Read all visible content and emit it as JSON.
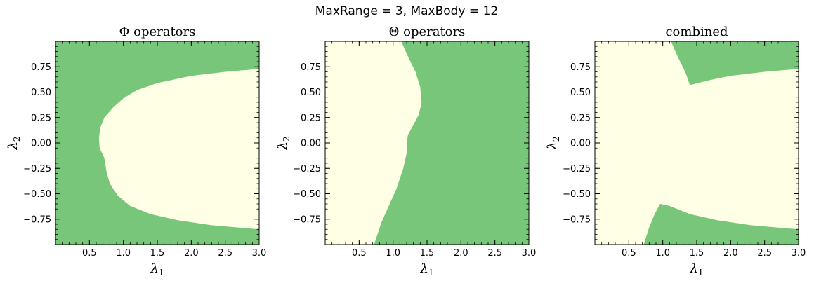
{
  "figure": {
    "suptitle": "MaxRange = 3,  MaxBody = 12"
  },
  "colors": {
    "region_green": "#78c679",
    "region_cream": "#ffffe5"
  },
  "chart_data": [
    {
      "type": "heatmap",
      "title": "Φ operators",
      "xlabel": "λ1",
      "ylabel": "λ2",
      "xlim": [
        0.0,
        3.0
      ],
      "ylim": [
        -1.0,
        1.0
      ],
      "xticks": [
        "0.5",
        "1.0",
        "1.5",
        "2.0",
        "2.5",
        "3.0"
      ],
      "yticks": [
        "0.75",
        "0.50",
        "0.25",
        "0.00",
        "−0.25",
        "−0.50",
        "−0.75"
      ],
      "grid": false,
      "background_color": "#78c679",
      "region_color": "#ffffe5",
      "region_boundary": [
        {
          "x": 3.0,
          "y": 0.73
        },
        {
          "x": 2.5,
          "y": 0.7
        },
        {
          "x": 2.0,
          "y": 0.66
        },
        {
          "x": 1.5,
          "y": 0.59
        },
        {
          "x": 1.2,
          "y": 0.52
        },
        {
          "x": 1.0,
          "y": 0.44
        },
        {
          "x": 0.85,
          "y": 0.35
        },
        {
          "x": 0.72,
          "y": 0.25
        },
        {
          "x": 0.66,
          "y": 0.15
        },
        {
          "x": 0.64,
          "y": 0.05
        },
        {
          "x": 0.65,
          "y": -0.05
        },
        {
          "x": 0.72,
          "y": -0.15
        },
        {
          "x": 0.75,
          "y": -0.28
        },
        {
          "x": 0.8,
          "y": -0.4
        },
        {
          "x": 0.92,
          "y": -0.52
        },
        {
          "x": 1.1,
          "y": -0.62
        },
        {
          "x": 1.4,
          "y": -0.7
        },
        {
          "x": 1.8,
          "y": -0.76
        },
        {
          "x": 2.3,
          "y": -0.81
        },
        {
          "x": 3.0,
          "y": -0.85
        }
      ]
    },
    {
      "type": "heatmap",
      "title": "Θ operators",
      "xlabel": "λ1",
      "ylabel": "λ2",
      "xlim": [
        0.0,
        3.0
      ],
      "ylim": [
        -1.0,
        1.0
      ],
      "xticks": [
        "0.5",
        "1.0",
        "1.5",
        "2.0",
        "2.5",
        "3.0"
      ],
      "yticks": [
        "0.75",
        "0.50",
        "0.25",
        "0.00",
        "−0.25",
        "−0.50",
        "−0.75"
      ],
      "grid": false,
      "background_color": "#78c679",
      "region_color": "#ffffe5",
      "region_boundary": [
        {
          "x": 0.0,
          "y": 1.0
        },
        {
          "x": 1.12,
          "y": 1.0
        },
        {
          "x": 1.22,
          "y": 0.85
        },
        {
          "x": 1.33,
          "y": 0.7
        },
        {
          "x": 1.4,
          "y": 0.55
        },
        {
          "x": 1.42,
          "y": 0.4
        },
        {
          "x": 1.38,
          "y": 0.28
        },
        {
          "x": 1.3,
          "y": 0.18
        },
        {
          "x": 1.22,
          "y": 0.08
        },
        {
          "x": 1.2,
          "y": 0.0
        },
        {
          "x": 1.2,
          "y": -0.1
        },
        {
          "x": 1.15,
          "y": -0.25
        },
        {
          "x": 1.05,
          "y": -0.45
        },
        {
          "x": 0.95,
          "y": -0.6
        },
        {
          "x": 0.83,
          "y": -0.78
        },
        {
          "x": 0.72,
          "y": -1.0
        },
        {
          "x": 0.0,
          "y": -1.0
        }
      ]
    },
    {
      "type": "heatmap",
      "title": "combined",
      "xlabel": "λ1",
      "ylabel": "λ2",
      "xlim": [
        0.0,
        3.0
      ],
      "ylim": [
        -1.0,
        1.0
      ],
      "xticks": [
        "0.5",
        "1.0",
        "1.5",
        "2.0",
        "2.5",
        "3.0"
      ],
      "yticks": [
        "0.75",
        "0.50",
        "0.25",
        "0.00",
        "−0.25",
        "−0.50",
        "−0.75"
      ],
      "grid": false,
      "background_color": "#ffffe5",
      "region_color": "#78c679",
      "green_regions": [
        [
          {
            "x": 1.12,
            "y": 1.0
          },
          {
            "x": 3.0,
            "y": 1.0
          },
          {
            "x": 3.0,
            "y": 0.73
          },
          {
            "x": 2.5,
            "y": 0.7
          },
          {
            "x": 2.0,
            "y": 0.66
          },
          {
            "x": 1.7,
            "y": 0.62
          },
          {
            "x": 1.4,
            "y": 0.57
          },
          {
            "x": 1.33,
            "y": 0.7
          },
          {
            "x": 1.22,
            "y": 0.85
          }
        ],
        [
          {
            "x": 0.72,
            "y": -1.0
          },
          {
            "x": 0.8,
            "y": -0.83
          },
          {
            "x": 0.88,
            "y": -0.7
          },
          {
            "x": 0.96,
            "y": -0.6
          },
          {
            "x": 1.1,
            "y": -0.62
          },
          {
            "x": 1.4,
            "y": -0.7
          },
          {
            "x": 1.8,
            "y": -0.76
          },
          {
            "x": 2.3,
            "y": -0.81
          },
          {
            "x": 3.0,
            "y": -0.85
          },
          {
            "x": 3.0,
            "y": -1.0
          }
        ]
      ]
    }
  ]
}
